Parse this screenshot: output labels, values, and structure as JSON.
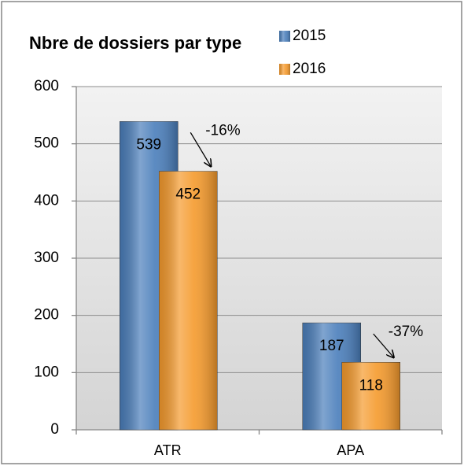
{
  "chart_data": {
    "type": "bar",
    "title": "Nbre de dossiers par type",
    "categories": [
      "ATR",
      "APA"
    ],
    "series": [
      {
        "name": "2015",
        "color": "#4a7ebb",
        "values": [
          539,
          187
        ]
      },
      {
        "name": "2016",
        "color": "#f59a2c",
        "values": [
          452,
          118
        ]
      }
    ],
    "annotations": [
      "-16%",
      "-37%"
    ],
    "ylim": [
      0,
      600
    ],
    "yticks": [
      0,
      100,
      200,
      300,
      400,
      500,
      600
    ],
    "grid": true,
    "legend": "top-right"
  }
}
